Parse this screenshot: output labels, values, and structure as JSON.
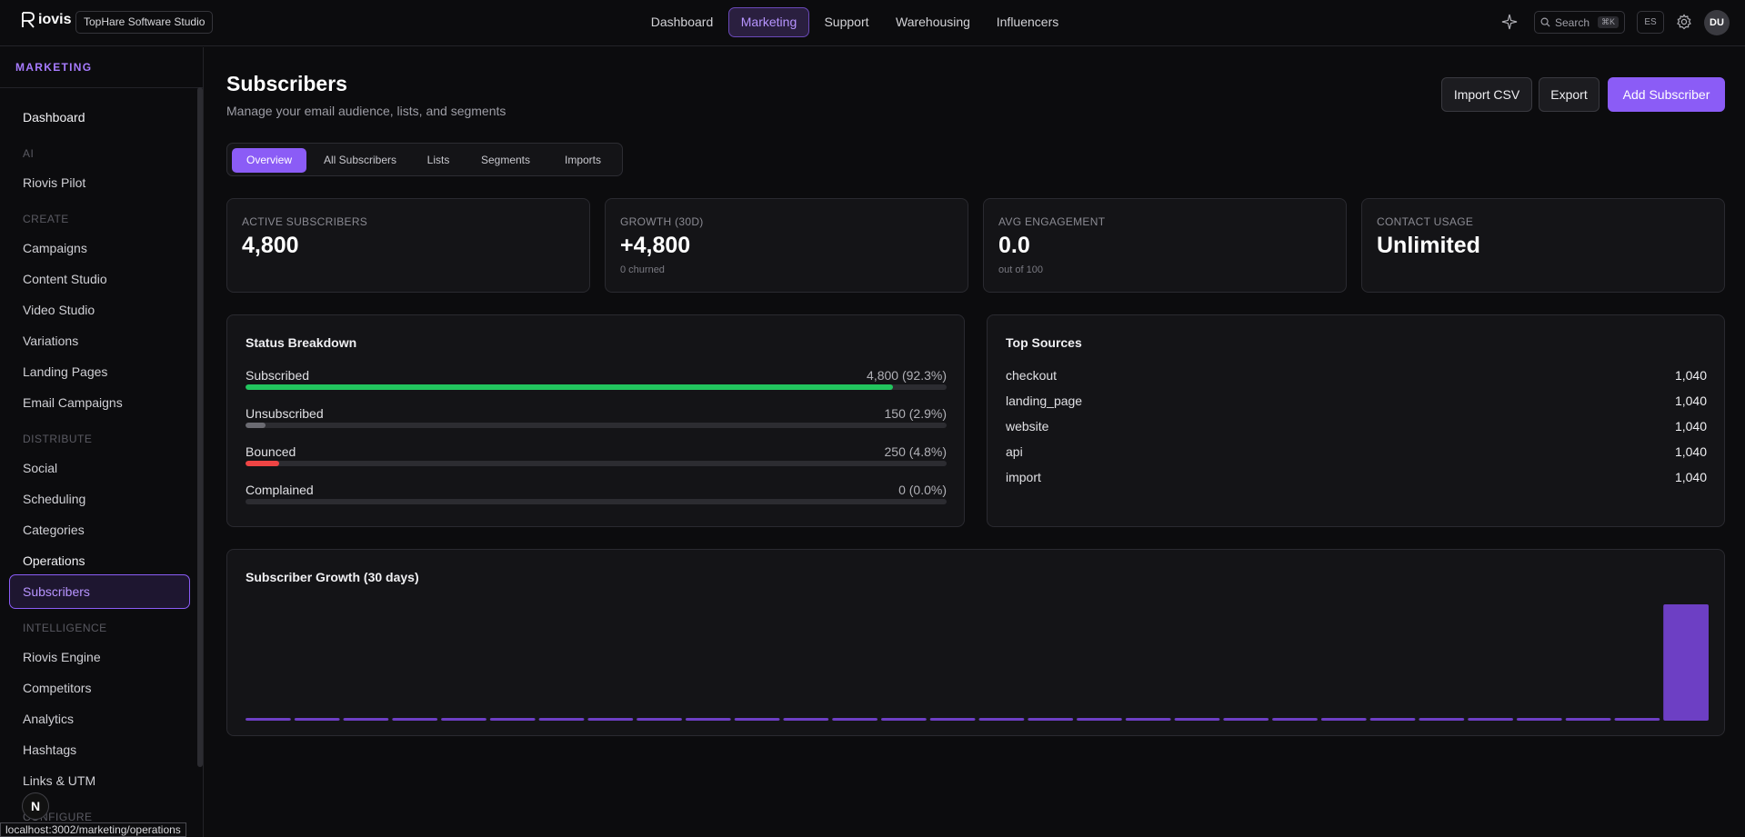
{
  "app": {
    "logo_text": "iovis",
    "workspace": "TopHare Software Studio"
  },
  "topnav": {
    "items": [
      {
        "label": "Dashboard"
      },
      {
        "label": "Marketing"
      },
      {
        "label": "Support"
      },
      {
        "label": "Warehousing"
      },
      {
        "label": "Influencers"
      }
    ],
    "active": "Marketing",
    "search_label": "Search",
    "search_shortcut": "⌘K",
    "lang": "ES",
    "avatar_initials": "DU"
  },
  "sidebar": {
    "header": "MARKETING",
    "dashboard": "Dashboard",
    "sections": {
      "ai": "AI",
      "create": "CREATE",
      "distribute": "DISTRIBUTE",
      "intelligence": "INTELLIGENCE",
      "configure": "CONFIGURE"
    },
    "items": {
      "pilot": "Riovis Pilot",
      "campaigns": "Campaigns",
      "content_studio": "Content Studio",
      "video_studio": "Video Studio",
      "variations": "Variations",
      "landing_pages": "Landing Pages",
      "email_campaigns": "Email Campaigns",
      "social": "Social",
      "scheduling": "Scheduling",
      "categories": "Categories",
      "operations": "Operations",
      "subscribers": "Subscribers",
      "engine": "Riovis Engine",
      "competitors": "Competitors",
      "analytics": "Analytics",
      "hashtags": "Hashtags",
      "links": "Links & UTM"
    },
    "fab_label": "N",
    "status_url": "localhost:3002/marketing/operations"
  },
  "page": {
    "title": "Subscribers",
    "subtitle": "Manage your email audience, lists, and segments",
    "buttons": {
      "import": "Import CSV",
      "export": "Export",
      "add": "Add Subscriber"
    },
    "tabs": [
      "Overview",
      "All Subscribers",
      "Lists",
      "Segments",
      "Imports"
    ],
    "active_tab": "Overview"
  },
  "stats": {
    "active": {
      "label": "ACTIVE SUBSCRIBERS",
      "value": "4,800"
    },
    "growth": {
      "label": "GROWTH (30D)",
      "value": "+4,800",
      "sub": "0 churned"
    },
    "engagement": {
      "label": "AVG ENGAGEMENT",
      "value": "0.0",
      "sub": "out of 100"
    },
    "usage": {
      "label": "CONTACT USAGE",
      "value": "Unlimited"
    }
  },
  "status_breakdown": {
    "title": "Status Breakdown",
    "rows": [
      {
        "label": "Subscribed",
        "value": "4,800 (92.3%)",
        "pct": 92.3,
        "color": "#22c55e"
      },
      {
        "label": "Unsubscribed",
        "value": "150 (2.9%)",
        "pct": 2.9,
        "color": "#6b6b72"
      },
      {
        "label": "Bounced",
        "value": "250 (4.8%)",
        "pct": 4.8,
        "color": "#ef4444"
      },
      {
        "label": "Complained",
        "value": "0 (0.0%)",
        "pct": 0,
        "color": "#f59e0b"
      }
    ]
  },
  "top_sources": {
    "title": "Top Sources",
    "rows": [
      {
        "name": "checkout",
        "count": "1,040"
      },
      {
        "name": "landing_page",
        "count": "1,040"
      },
      {
        "name": "website",
        "count": "1,040"
      },
      {
        "name": "api",
        "count": "1,040"
      },
      {
        "name": "import",
        "count": "1,040"
      }
    ]
  },
  "chart_data": {
    "type": "bar",
    "title": "Subscriber Growth (30 days)",
    "values": [
      0,
      0,
      0,
      0,
      0,
      0,
      0,
      0,
      0,
      0,
      0,
      0,
      0,
      0,
      0,
      0,
      0,
      0,
      0,
      0,
      0,
      0,
      0,
      0,
      0,
      0,
      0,
      0,
      0,
      4800
    ],
    "color": "#6d3fc4"
  }
}
